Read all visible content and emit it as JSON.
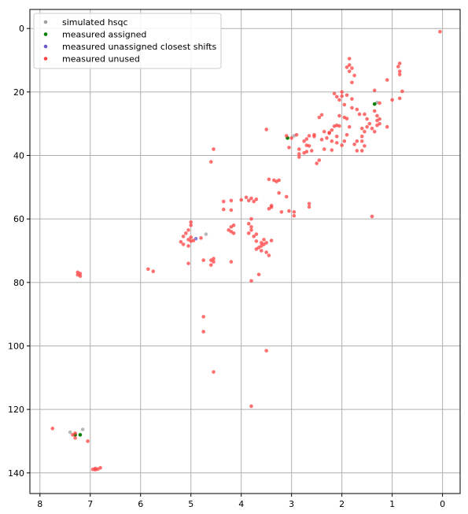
{
  "chart_data": {
    "type": "scatter",
    "xlabel": "",
    "ylabel": "",
    "xlim": [
      8.2,
      -0.35
    ],
    "ylim": [
      146.5,
      -6
    ],
    "x_ticks": [
      8,
      7,
      6,
      5,
      4,
      3,
      2,
      1,
      0
    ],
    "y_ticks": [
      0,
      20,
      40,
      60,
      80,
      100,
      120,
      140
    ],
    "grid": true,
    "legend_position": "top-left",
    "series": [
      {
        "name": "simulated hsqc",
        "color": "#a0a0a0",
        "points": [
          [
            7.4,
            127.2
          ],
          [
            7.15,
            126.3
          ],
          [
            2.95,
            33.8
          ],
          [
            4.7,
            64.8
          ],
          [
            1.3,
            23.3
          ]
        ]
      },
      {
        "name": "measured assigned",
        "color": "#008000",
        "points": [
          [
            3.08,
            34.5
          ],
          [
            1.35,
            23.8
          ],
          [
            7.3,
            128.0
          ],
          [
            7.2,
            128.0
          ]
        ]
      },
      {
        "name": "measured unassigned closest shifts",
        "color": "#6a5acd",
        "points": [
          [
            4.9,
            66.2
          ]
        ]
      },
      {
        "name": "measured unused",
        "color": "#ff4040",
        "points": [
          [
            0.05,
            1.0
          ],
          [
            1.85,
            9.5
          ],
          [
            1.85,
            11.5
          ],
          [
            1.9,
            12.2
          ],
          [
            1.8,
            12.5
          ],
          [
            1.85,
            13.5
          ],
          [
            1.75,
            14.8
          ],
          [
            1.8,
            17.0
          ],
          [
            2.0,
            20.0
          ],
          [
            1.9,
            21.0
          ],
          [
            1.8,
            22.2
          ],
          [
            1.95,
            24.0
          ],
          [
            2.15,
            20.5
          ],
          [
            2.1,
            21.5
          ],
          [
            2.05,
            22.5
          ],
          [
            2.0,
            21.3
          ],
          [
            2.05,
            27.5
          ],
          [
            1.95,
            28.0
          ],
          [
            1.9,
            28.4
          ],
          [
            1.85,
            31.0
          ],
          [
            1.9,
            33.5
          ],
          [
            1.95,
            35.5
          ],
          [
            2.1,
            30.5
          ],
          [
            2.15,
            30.8
          ],
          [
            2.05,
            30.7
          ],
          [
            2.2,
            32.0
          ],
          [
            2.25,
            33.0
          ],
          [
            2.1,
            34.0
          ],
          [
            2.2,
            35.5
          ],
          [
            2.1,
            36.0
          ],
          [
            2.0,
            36.8
          ],
          [
            2.4,
            27.2
          ],
          [
            2.45,
            28.0
          ],
          [
            2.35,
            32.5
          ],
          [
            2.25,
            32.8
          ],
          [
            2.3,
            34.5
          ],
          [
            2.4,
            35.0
          ],
          [
            2.35,
            38.0
          ],
          [
            2.2,
            38.3
          ],
          [
            2.45,
            41.5
          ],
          [
            2.5,
            42.5
          ],
          [
            2.55,
            33.5
          ],
          [
            2.65,
            33.8
          ],
          [
            2.7,
            34.8
          ],
          [
            2.75,
            35.5
          ],
          [
            2.7,
            36.8
          ],
          [
            2.65,
            37.0
          ],
          [
            2.6,
            38.5
          ],
          [
            2.7,
            38.8
          ],
          [
            2.75,
            39.2
          ],
          [
            2.85,
            38.0
          ],
          [
            2.85,
            39.5
          ],
          [
            2.85,
            40.5
          ],
          [
            3.0,
            34.5
          ],
          [
            2.9,
            33.5
          ],
          [
            2.55,
            34.0
          ],
          [
            1.55,
            27.0
          ],
          [
            1.5,
            28.5
          ],
          [
            1.6,
            31.5
          ],
          [
            1.5,
            31.0
          ],
          [
            1.55,
            32.5
          ],
          [
            1.6,
            34.0
          ],
          [
            1.7,
            35.5
          ],
          [
            1.6,
            35.5
          ],
          [
            1.75,
            36.5
          ],
          [
            1.7,
            38.5
          ],
          [
            1.6,
            38.5
          ],
          [
            1.55,
            37.0
          ],
          [
            1.7,
            25.5
          ],
          [
            1.8,
            25.0
          ],
          [
            1.65,
            27.0
          ],
          [
            1.35,
            26.0
          ],
          [
            1.3,
            27.5
          ],
          [
            1.25,
            28.5
          ],
          [
            1.3,
            29.0
          ],
          [
            1.25,
            30.0
          ],
          [
            1.3,
            30.5
          ],
          [
            1.4,
            31.5
          ],
          [
            1.35,
            32.5
          ],
          [
            1.45,
            30.0
          ],
          [
            1.25,
            23.5
          ],
          [
            1.35,
            19.5
          ],
          [
            1.1,
            31.0
          ],
          [
            1.1,
            16.2
          ],
          [
            1.0,
            22.5
          ],
          [
            0.85,
            11.0
          ],
          [
            0.88,
            12.0
          ],
          [
            0.85,
            13.5
          ],
          [
            0.85,
            14.5
          ],
          [
            0.8,
            19.8
          ],
          [
            0.85,
            22.0
          ],
          [
            3.5,
            31.8
          ],
          [
            3.1,
            33.8
          ],
          [
            3.05,
            37.5
          ],
          [
            2.65,
            55.2
          ],
          [
            2.65,
            56.2
          ],
          [
            2.95,
            57.8
          ],
          [
            2.95,
            59.0
          ],
          [
            3.1,
            53.0
          ],
          [
            3.05,
            57.5
          ],
          [
            3.25,
            51.8
          ],
          [
            3.45,
            47.5
          ],
          [
            3.35,
            47.8
          ],
          [
            3.3,
            48.2
          ],
          [
            3.25,
            47.8
          ],
          [
            3.4,
            55.8
          ],
          [
            3.4,
            56.3
          ],
          [
            3.45,
            56.8
          ],
          [
            3.2,
            57.8
          ],
          [
            3.8,
            53.5
          ],
          [
            3.75,
            54.5
          ],
          [
            3.7,
            53.8
          ],
          [
            3.85,
            54.2
          ],
          [
            3.9,
            53.2
          ],
          [
            4.0,
            54.0
          ],
          [
            4.2,
            54.2
          ],
          [
            4.35,
            54.5
          ],
          [
            4.35,
            57.0
          ],
          [
            4.2,
            57.2
          ],
          [
            3.8,
            60.0
          ],
          [
            3.85,
            61.5
          ],
          [
            3.8,
            62.5
          ],
          [
            3.8,
            63.5
          ],
          [
            3.85,
            64.5
          ],
          [
            3.7,
            64.8
          ],
          [
            3.75,
            65.5
          ],
          [
            3.7,
            67.0
          ],
          [
            3.6,
            67.5
          ],
          [
            3.55,
            68.0
          ],
          [
            3.6,
            68.5
          ],
          [
            3.65,
            69.0
          ],
          [
            3.7,
            69.5
          ],
          [
            3.6,
            70.0
          ],
          [
            3.5,
            70.5
          ],
          [
            3.45,
            71.5
          ],
          [
            3.55,
            66.5
          ],
          [
            3.4,
            66.8
          ],
          [
            3.5,
            67.5
          ],
          [
            4.15,
            62.0
          ],
          [
            4.2,
            62.5
          ],
          [
            4.25,
            63.5
          ],
          [
            4.2,
            64.0
          ],
          [
            4.15,
            64.5
          ],
          [
            4.2,
            73.5
          ],
          [
            3.65,
            77.5
          ],
          [
            3.8,
            79.5
          ],
          [
            4.55,
            72.5
          ],
          [
            4.6,
            73.0
          ],
          [
            4.55,
            73.5
          ],
          [
            4.6,
            74.5
          ],
          [
            4.55,
            38.0
          ],
          [
            4.6,
            42.0
          ],
          [
            5.0,
            61.0
          ],
          [
            5.0,
            62.0
          ],
          [
            5.05,
            63.5
          ],
          [
            5.1,
            64.5
          ],
          [
            5.15,
            65.5
          ],
          [
            5.0,
            65.8
          ],
          [
            5.05,
            66.5
          ],
          [
            5.0,
            67.0
          ],
          [
            4.95,
            66.8
          ],
          [
            5.2,
            67.2
          ],
          [
            5.15,
            68.0
          ],
          [
            5.05,
            68.5
          ],
          [
            5.05,
            74.0
          ],
          [
            4.8,
            66.0
          ],
          [
            4.75,
            73.0
          ],
          [
            5.85,
            75.8
          ],
          [
            5.75,
            76.5
          ],
          [
            4.75,
            90.8
          ],
          [
            4.75,
            95.5
          ],
          [
            4.55,
            108.2
          ],
          [
            3.5,
            101.5
          ],
          [
            3.8,
            119.0
          ],
          [
            1.4,
            59.2
          ],
          [
            7.25,
            76.8
          ],
          [
            7.2,
            77.2
          ],
          [
            7.25,
            77.6
          ],
          [
            7.2,
            78.0
          ],
          [
            7.75,
            126.0
          ],
          [
            7.3,
            127.5
          ],
          [
            7.35,
            128.0
          ],
          [
            7.3,
            129.0
          ],
          [
            7.05,
            130.0
          ],
          [
            6.9,
            138.6
          ],
          [
            6.85,
            138.8
          ],
          [
            6.8,
            138.4
          ],
          [
            6.9,
            139.0
          ],
          [
            6.95,
            138.9
          ]
        ]
      }
    ]
  }
}
